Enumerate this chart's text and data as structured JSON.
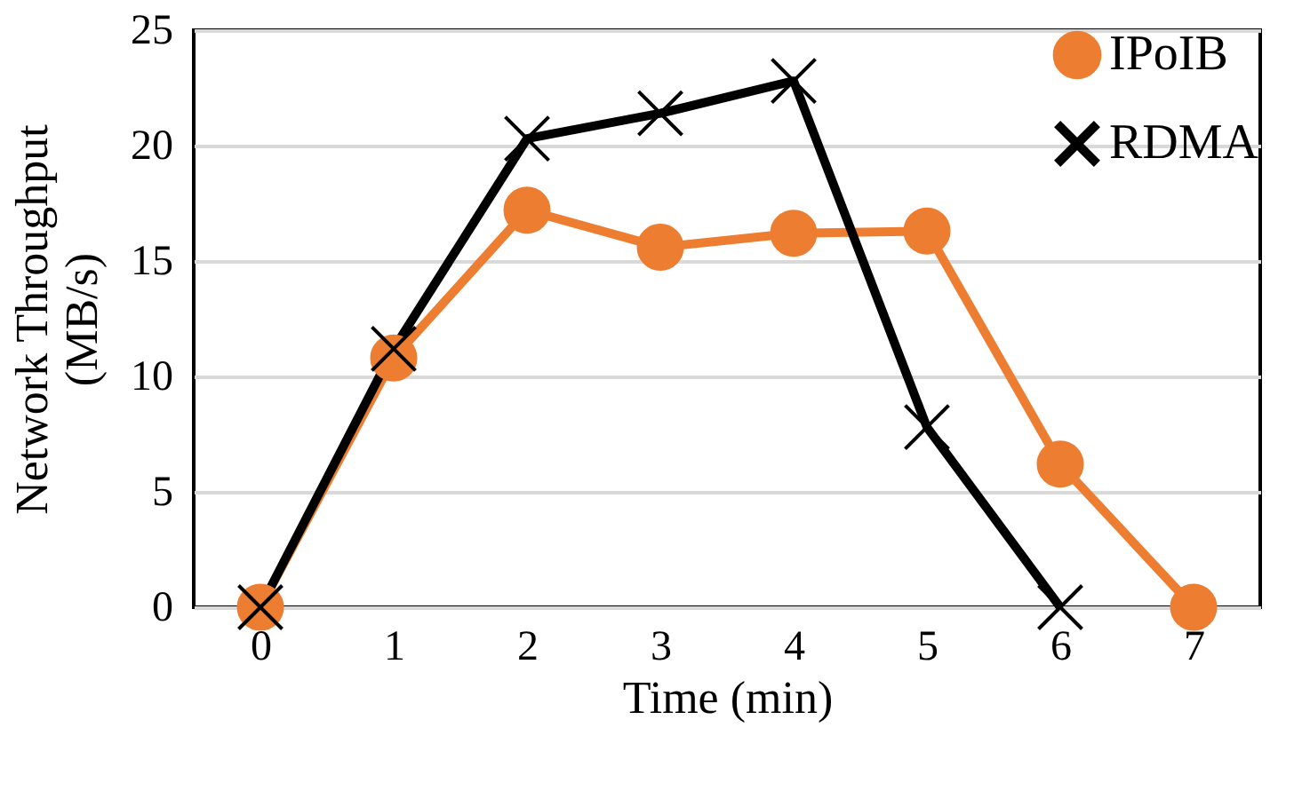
{
  "chart_data": {
    "type": "line",
    "xlabel": "Time (min)",
    "ylabel": "Network Throughput (MB/s)",
    "categories": [
      "0",
      "1",
      "2",
      "3",
      "4",
      "5",
      "6",
      "7"
    ],
    "series": [
      {
        "name": "IPoIB",
        "color": "#ed7d31",
        "marker": "circle",
        "values": [
          0,
          10.8,
          17.2,
          15.6,
          16.2,
          16.3,
          6.2,
          0
        ]
      },
      {
        "name": "RDMA",
        "color": "#000000",
        "marker": "cross",
        "values": [
          0,
          11.2,
          20.3,
          21.4,
          22.8,
          7.8,
          0,
          null
        ]
      }
    ],
    "ylim": [
      0,
      25
    ],
    "yticks": [
      0,
      5,
      10,
      15,
      20,
      25
    ],
    "grid": "y",
    "legend": "top right"
  }
}
